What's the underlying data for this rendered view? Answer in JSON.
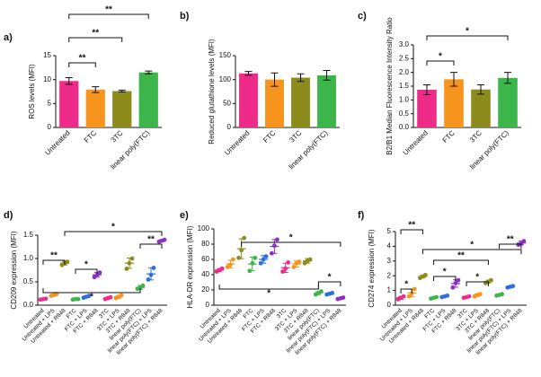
{
  "chart_data": [
    {
      "type": "bar",
      "panel_label": "a)",
      "ylabel": "ROS levels (MFI)",
      "categories": [
        "Untreated",
        "FTC",
        "3TC",
        "linear poly(FTC)"
      ],
      "colors": [
        "#ef2b8a",
        "#f7941d",
        "#8c8c1c",
        "#3cb54a"
      ],
      "values": [
        9.7,
        7.9,
        7.6,
        11.5
      ],
      "errors": [
        0.7,
        0.6,
        0.2,
        0.3
      ],
      "ylim": [
        0,
        15
      ],
      "yticks": [
        0,
        5,
        10,
        15
      ],
      "significance": [
        {
          "label": "**",
          "between": [
            "Untreated",
            "FTC"
          ]
        },
        {
          "label": "**",
          "between": [
            "Untreated",
            "3TC"
          ]
        },
        {
          "label": "**",
          "between": [
            "Untreated",
            "linear poly(FTC)"
          ]
        }
      ]
    },
    {
      "type": "bar",
      "panel_label": "b)",
      "ylabel": "Reduced glutathione levels (MFI)",
      "categories": [
        "Untreated",
        "FTC",
        "3TC",
        "linear poly(FTC)"
      ],
      "colors": [
        "#ef2b8a",
        "#f7941d",
        "#8c8c1c",
        "#3cb54a"
      ],
      "values": [
        113,
        100,
        104,
        109
      ],
      "errors": [
        4,
        14,
        8,
        10
      ],
      "ylim": [
        0,
        150
      ],
      "yticks": [
        0,
        50,
        100,
        150
      ],
      "significance": []
    },
    {
      "type": "bar",
      "panel_label": "c)",
      "ylabel": "B2/B1 Median Fluorescence Intensity Ratio",
      "categories": [
        "Untreated",
        "FTC",
        "3TC",
        "linear poly(FTC)"
      ],
      "colors": [
        "#ef2b8a",
        "#f7941d",
        "#8c8c1c",
        "#3cb54a"
      ],
      "values": [
        1.37,
        1.75,
        1.38,
        1.8
      ],
      "errors": [
        0.18,
        0.25,
        0.17,
        0.2
      ],
      "ylim": [
        0,
        3
      ],
      "yticks": [
        {
          "value": 0,
          "label": "0.0"
        },
        0.5,
        {
          "value": 1,
          "label": "1.0"
        },
        1.5,
        {
          "value": 2,
          "label": "2.0"
        },
        2.5,
        {
          "value": 3,
          "label": "3.0"
        }
      ],
      "significance": [
        {
          "label": "*",
          "between": [
            "Untreated",
            "FTC"
          ]
        },
        {
          "label": "*",
          "between": [
            "Untreated",
            "linear poly(FTC)"
          ]
        }
      ]
    },
    {
      "type": "dot",
      "panel_label": "d)",
      "ylabel": "CD209 expression (MFI)",
      "categories": [
        "Untreated",
        "Untreated + LPS",
        "Untreated + R848",
        "FTC",
        "FTC + LPS",
        "FTC + R848",
        "3TC",
        "3TC + LPS",
        "3TC + R848",
        "linear poly(FTC)",
        "linear poly(FTC) + LPS",
        "linear poly(FTC) + R848"
      ],
      "colors": [
        "#ef2b8a",
        "#f7941d",
        "#8c8c1c",
        "#3cb54a",
        "#2b6fe0",
        "#8e2fc4",
        "#ef2b8a",
        "#f7941d",
        "#8c8c1c",
        "#3cb54a",
        "#2b6fe0",
        "#8e2fc4"
      ],
      "points": [
        [
          0.12,
          0.13,
          0.14
        ],
        [
          0.2,
          0.22,
          0.24
        ],
        [
          0.86,
          0.9,
          0.93
        ],
        [
          0.12,
          0.13,
          0.13
        ],
        [
          0.16,
          0.18,
          0.2
        ],
        [
          0.6,
          0.65,
          0.7
        ],
        [
          0.13,
          0.15,
          0.17
        ],
        [
          0.15,
          0.18,
          0.21
        ],
        [
          0.78,
          0.9,
          1.0
        ],
        [
          0.35,
          0.38,
          0.42
        ],
        [
          0.55,
          0.65,
          0.8
        ],
        [
          1.36,
          1.38,
          1.4
        ]
      ],
      "means": [
        0.13,
        0.22,
        0.9,
        0.13,
        0.18,
        0.65,
        0.15,
        0.18,
        0.9,
        0.38,
        0.67,
        1.38
      ],
      "errors": [
        0.01,
        0.02,
        0.04,
        0.01,
        0.02,
        0.05,
        0.02,
        0.03,
        0.11,
        0.04,
        0.13,
        0.02
      ],
      "ylim": [
        0,
        1.5
      ],
      "yticks": [
        {
          "value": 0,
          "label": "0.0"
        },
        0.5,
        {
          "value": 1,
          "label": "1.0"
        },
        1.5
      ],
      "significance": [
        {
          "label": "**",
          "between": [
            "Untreated",
            "Untreated + R848"
          ]
        },
        {
          "label": "*",
          "between": [
            "FTC",
            "FTC + R848"
          ]
        },
        {
          "label": "**",
          "between": [
            "linear poly(FTC)",
            "linear poly(FTC) + R848"
          ]
        },
        {
          "label": "*",
          "between": [
            "Untreated + R848",
            "linear poly(FTC) + R848"
          ]
        },
        {
          "label": "*",
          "between": [
            "Untreated",
            "linear poly(FTC)"
          ]
        }
      ]
    },
    {
      "type": "dot",
      "panel_label": "e)",
      "ylabel": "HLA-DR expression (MFI)",
      "categories": [
        "Untreated",
        "Untreated + LPS",
        "Untreated + R848",
        "FTC",
        "FTC + LPS",
        "FTC + R848",
        "3TC",
        "3TC + LPS",
        "3TC + R848",
        "linear poly(FTC)",
        "linear poly(FTC) + LPS",
        "linear poly(FTC) + R848"
      ],
      "colors": [
        "#ef2b8a",
        "#f7941d",
        "#8c8c1c",
        "#3cb54a",
        "#2b6fe0",
        "#8e2fc4",
        "#ef2b8a",
        "#f7941d",
        "#8c8c1c",
        "#3cb54a",
        "#2b6fe0",
        "#8e2fc4"
      ],
      "points": [
        [
          44,
          46,
          48
        ],
        [
          50,
          53,
          60
        ],
        [
          62,
          72,
          88
        ],
        [
          45,
          55,
          62
        ],
        [
          55,
          60,
          64
        ],
        [
          68,
          78,
          86
        ],
        [
          44,
          48,
          56
        ],
        [
          50,
          55,
          57
        ],
        [
          55,
          58,
          60
        ],
        [
          14,
          16,
          18
        ],
        [
          14,
          15,
          16
        ],
        [
          8,
          9,
          10
        ]
      ],
      "means": [
        46,
        54,
        74,
        54,
        60,
        77,
        49,
        54,
        58,
        16,
        15,
        9
      ],
      "errors": [
        2,
        5,
        13,
        9,
        5,
        9,
        6,
        4,
        3,
        2,
        1,
        1
      ],
      "ylim": [
        0,
        100
      ],
      "yticks": [
        0,
        20,
        40,
        60,
        80,
        100
      ],
      "significance": [
        {
          "label": "*",
          "between": [
            "Untreated + R848",
            "linear poly(FTC) + R848"
          ]
        },
        {
          "label": "*",
          "between": [
            "linear poly(FTC)",
            "linear poly(FTC) + R848"
          ]
        },
        {
          "label": "*",
          "between": [
            "Untreated",
            "linear poly(FTC)"
          ]
        }
      ]
    },
    {
      "type": "dot",
      "panel_label": "f)",
      "ylabel": "CD274 expression (MFI)",
      "categories": [
        "Untreated",
        "Untreated + LPS",
        "Untreated + R848",
        "FTC",
        "FTC + LPS",
        "FTC + R848",
        "3TC",
        "3TC + LPS",
        "3TC + R848",
        "linear poly(FTC)",
        "linear poly(FTC) + LPS",
        "linear poly(FTC) + R848"
      ],
      "colors": [
        "#ef2b8a",
        "#f7941d",
        "#8c8c1c",
        "#3cb54a",
        "#2b6fe0",
        "#8e2fc4",
        "#ef2b8a",
        "#f7941d",
        "#8c8c1c",
        "#3cb54a",
        "#2b6fe0",
        "#8e2fc4"
      ],
      "points": [
        [
          0.4,
          0.5,
          0.6
        ],
        [
          0.6,
          0.8,
          1.1
        ],
        [
          1.85,
          1.95,
          2.05
        ],
        [
          0.45,
          0.5,
          0.55
        ],
        [
          0.55,
          0.6,
          0.65
        ],
        [
          1.2,
          1.5,
          1.7
        ],
        [
          0.5,
          0.55,
          0.6
        ],
        [
          0.6,
          0.7,
          0.75
        ],
        [
          1.5,
          1.6,
          1.7
        ],
        [
          0.65,
          0.7,
          0.75
        ],
        [
          1.2,
          1.25,
          1.3
        ],
        [
          4.1,
          4.2,
          4.35
        ]
      ],
      "means": [
        0.5,
        0.83,
        1.95,
        0.5,
        0.6,
        1.47,
        0.55,
        0.68,
        1.6,
        0.7,
        1.25,
        4.22
      ],
      "errors": [
        0.1,
        0.25,
        0.1,
        0.05,
        0.05,
        0.25,
        0.05,
        0.08,
        0.1,
        0.05,
        0.05,
        0.13
      ],
      "ylim": [
        0,
        5
      ],
      "yticks": [
        0,
        1,
        2,
        3,
        4,
        5
      ],
      "significance": [
        {
          "label": "*",
          "between": [
            "Untreated",
            "Untreated + LPS"
          ]
        },
        {
          "label": "**",
          "between": [
            "Untreated",
            "Untreated + R848"
          ]
        },
        {
          "label": "*",
          "between": [
            "FTC",
            "FTC + R848"
          ]
        },
        {
          "label": "**",
          "between": [
            "FTC",
            "3TC + R848"
          ]
        },
        {
          "label": "*",
          "between": [
            "3TC",
            "3TC + R848"
          ]
        },
        {
          "label": "**",
          "between": [
            "linear poly(FTC)",
            "linear poly(FTC) + R848"
          ]
        },
        {
          "label": "*",
          "between": [
            "Untreated + R848",
            "linear poly(FTC) + R848"
          ]
        }
      ]
    }
  ]
}
